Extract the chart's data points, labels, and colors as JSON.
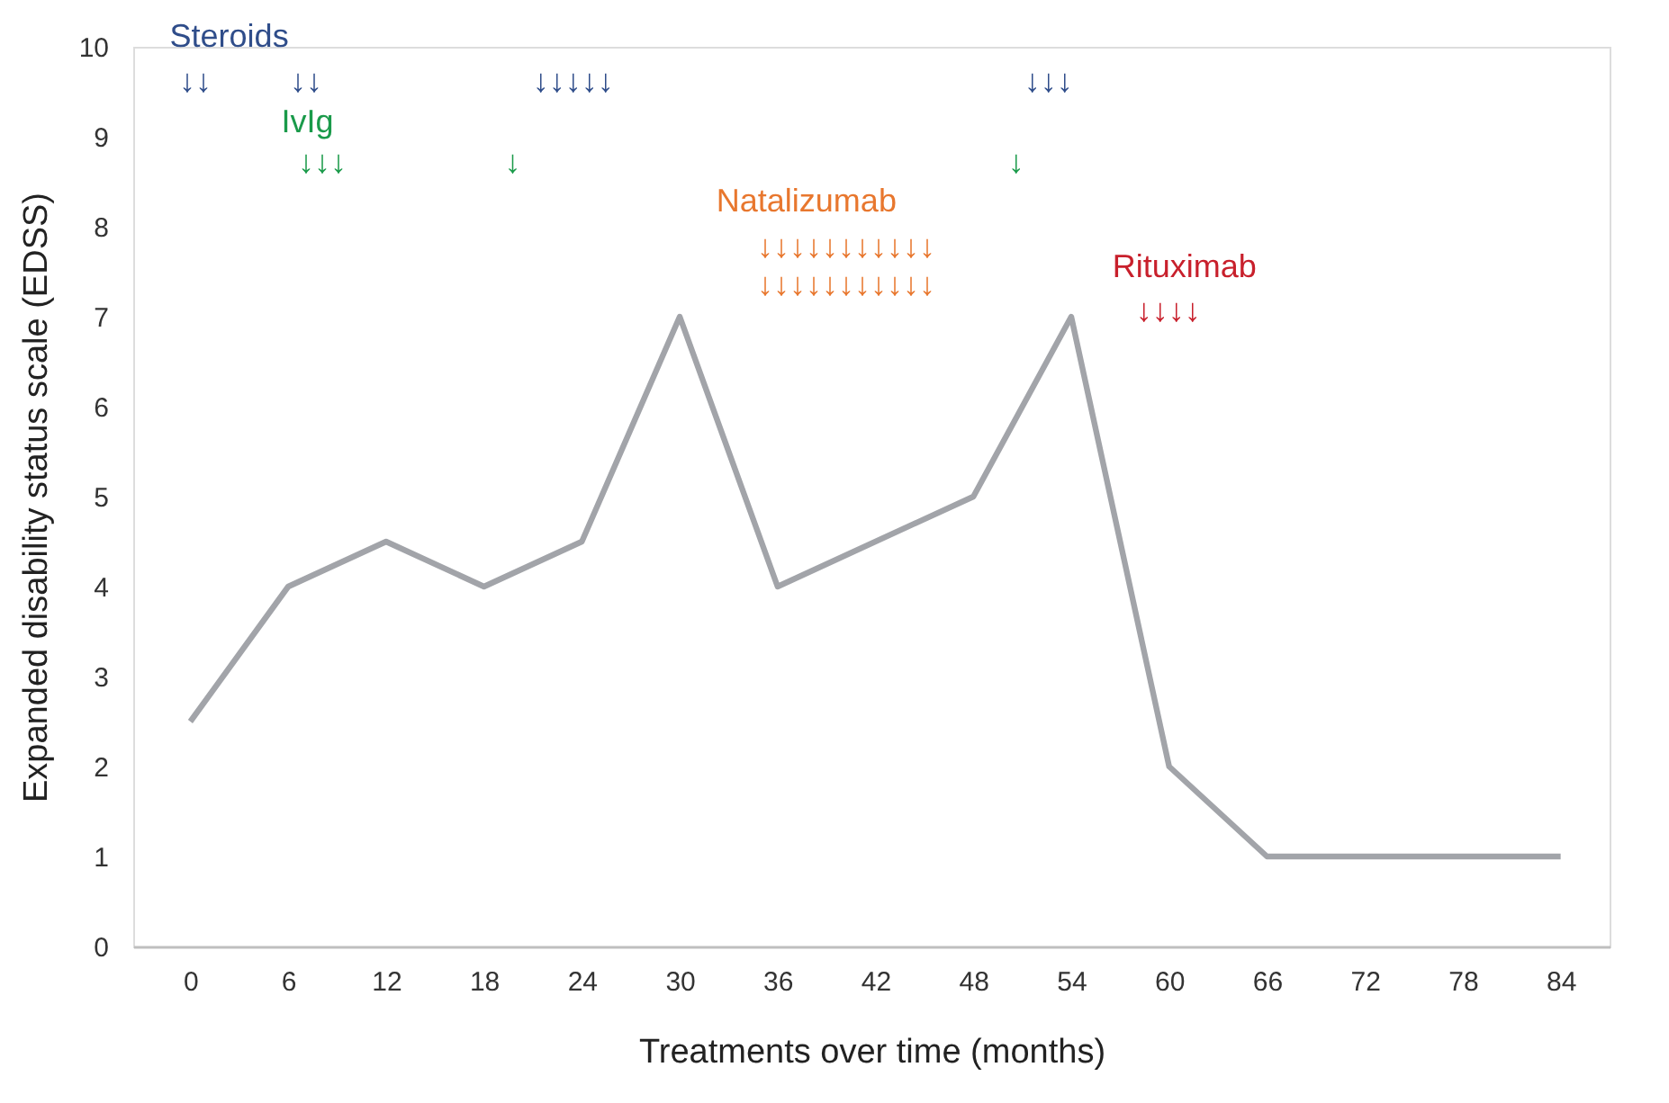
{
  "chart_data": {
    "type": "line",
    "xlabel": "Treatments over time (months)",
    "ylabel": "Expanded disability status scale (EDSS)",
    "x": [
      0,
      6,
      12,
      18,
      24,
      30,
      36,
      48,
      54,
      60,
      66,
      84
    ],
    "series": [
      {
        "color": "#a2a4a9",
        "values": [
          2.5,
          4,
          4.5,
          4,
          4.5,
          7,
          4,
          5,
          7,
          2,
          1,
          1
        ]
      }
    ],
    "xlim": [
      -3.5,
      87
    ],
    "xticks": [
      0,
      6,
      12,
      18,
      24,
      30,
      36,
      42,
      48,
      54,
      60,
      66,
      72,
      78,
      84
    ],
    "ylim": [
      0,
      10
    ],
    "yticks": [
      0,
      1,
      2,
      3,
      4,
      5,
      6,
      7,
      8,
      9,
      10
    ],
    "grid": false,
    "marker": "none",
    "line_style": "solid",
    "annotations": [
      "Steroids",
      "↓↓",
      "↓↓",
      "↓↓↓↓↓",
      "↓↓↓",
      "IvIg",
      "↓↓↓",
      "↓",
      "↓",
      "Natalizumab",
      "↓↓↓↓↓↓↓↓↓↓↓",
      "↓↓↓↓↓↓↓↓↓↓↓",
      "Rituximab",
      "↓↓↓↓"
    ]
  }
}
